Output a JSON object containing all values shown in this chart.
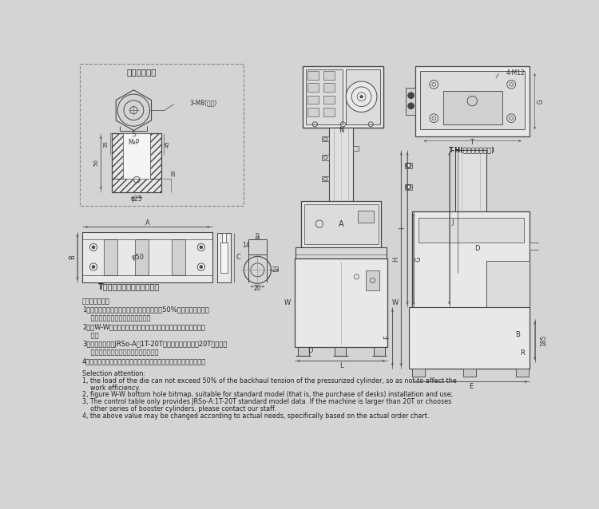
{
  "bg_color": "#d4d4d4",
  "line_color": "#444444",
  "dark_line": "#222222",
  "text_color": "#333333",
  "white": "#f5f5f5",
  "light_gray": "#e8e8e8",
  "mid_gray": "#d0d0d0",
  "chinese_notes": [
    "選型注意事項：",
    "1、模具上模負載不能超過增壓缸回程拉力的50%，以免影響工作效",
    "    率；此點要求適用我司所有機台。",
    "2、圖W-W底部孔位圖，適用于標配機型（即未選購桌子）安裝使",
    "    用；",
    "3、對照表僅提供JRSo-A：1T-20T標準機型數据，大於20T或選其他",
    "    系列增壓缸的機台請与我司人員聯系；",
    "4、以上數値可能会根据實際需要進行定動，具体以實際訂單圖為准。"
  ],
  "english_notes": [
    "Selection attention:",
    "1, the load of the die can not exceed 50% of the backhaul tension of the pressurized cylinder, so as not to affect the",
    "    work efficiency.",
    "2, figure W-W bottom hole bitmap, suitable for standard model (that is, the purchase of desks) installation and use;",
    "3, The control table only provides JRSo-A:1T-20T standard model data. If the machine is larger than 20T or chooses",
    "    other series of booster cylinders, please contact our staff.",
    "4, the above value may be changed according to actual needs, specifically based on the actual order chart."
  ]
}
